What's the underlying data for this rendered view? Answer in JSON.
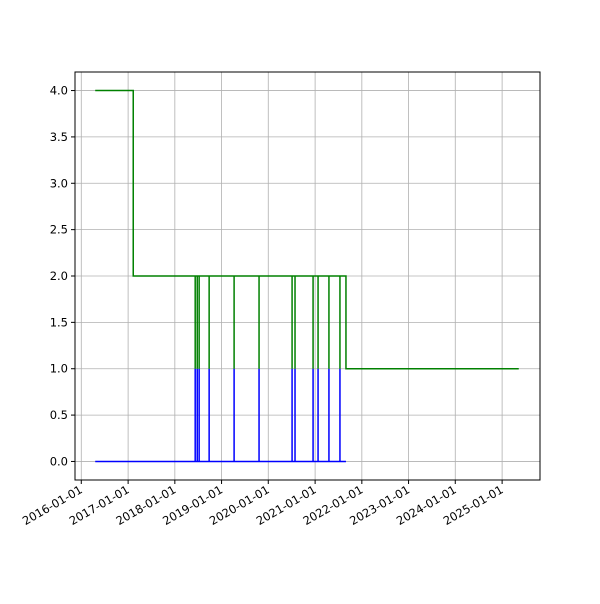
{
  "chart_data": {
    "type": "line",
    "xlim": [
      "2015-11-13",
      "2025-10-24"
    ],
    "ylim": [
      -0.2,
      4.2
    ],
    "xticks": [
      "2016-01-01",
      "2017-01-01",
      "2018-01-01",
      "2019-01-01",
      "2020-01-01",
      "2021-01-01",
      "2022-01-01",
      "2023-01-01",
      "2024-01-01",
      "2025-01-01"
    ],
    "yticks": [
      {
        "value": 0,
        "label": "0.0"
      },
      {
        "value": 0.5,
        "label": "0.5"
      },
      {
        "value": 1,
        "label": "1.0"
      },
      {
        "value": 1.5,
        "label": "1.5"
      },
      {
        "value": 2,
        "label": "2.0"
      },
      {
        "value": 2.5,
        "label": "2.5"
      },
      {
        "value": 3,
        "label": "3.0"
      },
      {
        "value": 3.5,
        "label": "3.5"
      },
      {
        "value": 4,
        "label": "4.0"
      }
    ],
    "grid": true,
    "series": [
      {
        "color": "#0000ff",
        "x": [
          "2016-04-19",
          "2018-06-09",
          "2018-06-09",
          "2018-06-09",
          "2018-06-25",
          "2018-06-25",
          "2018-06-25",
          "2018-07-10",
          "2018-07-10",
          "2018-07-10",
          "2018-09-26",
          "2018-09-26",
          "2018-09-26",
          "2019-04-09",
          "2019-04-09",
          "2019-04-09",
          "2019-10-21",
          "2019-10-21",
          "2019-10-21",
          "2020-07-05",
          "2020-07-05",
          "2020-07-05",
          "2020-07-28",
          "2020-07-28",
          "2020-07-28",
          "2020-12-16",
          "2020-12-16",
          "2020-12-16",
          "2021-01-24",
          "2021-01-24",
          "2021-01-24",
          "2021-04-19",
          "2021-04-19",
          "2021-04-19",
          "2021-07-14",
          "2021-07-14",
          "2021-07-14",
          "2021-08-30"
        ],
        "values": [
          0,
          0,
          1,
          0,
          0,
          1,
          0,
          0,
          1,
          0,
          0,
          1,
          0,
          0,
          1,
          0,
          0,
          1,
          0,
          0,
          1,
          0,
          0,
          1,
          0,
          0,
          1,
          0,
          0,
          1,
          0,
          0,
          1,
          0,
          0,
          1,
          0,
          0
        ]
      },
      {
        "color": "#008000",
        "x": [
          "2016-04-19",
          "2017-02-10",
          "2017-02-10",
          "2018-06-09",
          "2018-06-09",
          "2018-06-09",
          "2018-06-25",
          "2018-06-25",
          "2018-06-25",
          "2018-07-10",
          "2018-07-10",
          "2018-07-10",
          "2018-09-26",
          "2018-09-26",
          "2018-09-26",
          "2019-04-09",
          "2019-04-09",
          "2019-04-09",
          "2019-10-21",
          "2019-10-21",
          "2019-10-21",
          "2020-07-05",
          "2020-07-05",
          "2020-07-05",
          "2020-07-28",
          "2020-07-28",
          "2020-07-28",
          "2020-12-16",
          "2020-12-16",
          "2020-12-16",
          "2021-01-24",
          "2021-01-24",
          "2021-01-24",
          "2021-04-19",
          "2021-04-19",
          "2021-04-19",
          "2021-07-14",
          "2021-07-14",
          "2021-07-14",
          "2021-08-30",
          "2021-08-30",
          "2025-05-11"
        ],
        "values": [
          4,
          4,
          2,
          2,
          1,
          2,
          2,
          1,
          2,
          2,
          1,
          2,
          2,
          1,
          2,
          2,
          1,
          2,
          2,
          1,
          2,
          2,
          1,
          2,
          2,
          1,
          2,
          2,
          1,
          2,
          2,
          1,
          2,
          2,
          1,
          2,
          2,
          1,
          2,
          2,
          1,
          1
        ]
      }
    ]
  }
}
